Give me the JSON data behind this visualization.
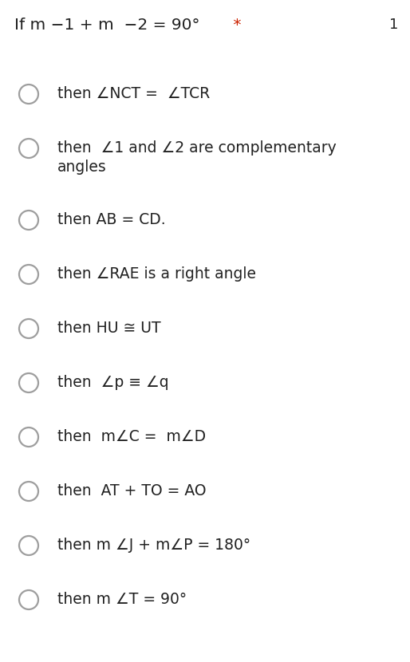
{
  "title_parts": [
    {
      "text": "If m ",
      "color": "#212121"
    },
    {
      "text": "∠1 + m  ∠2 = 90°",
      "color": "#212121"
    },
    {
      "text": " *",
      "color": "#cc2200"
    }
  ],
  "title_number": "1",
  "background_color": "#ffffff",
  "text_color": "#212121",
  "circle_color": "#9e9e9e",
  "options": [
    {
      "text": "then ∠NCT =  ∠TCR",
      "lines": 1
    },
    {
      "text": "then  ∠1 and ∠2 are complementary\nangles",
      "lines": 2
    },
    {
      "text": "then AB = CD.",
      "lines": 1
    },
    {
      "text": "then ∠RAE is a right angle",
      "lines": 1
    },
    {
      "text": "then HU ≅ UT",
      "lines": 1
    },
    {
      "text": "then  ∠p ≡ ∠q",
      "lines": 1
    },
    {
      "text": "then  m∠C =  m∠D",
      "lines": 1
    },
    {
      "text": "then  AT + TO = AO",
      "lines": 1
    },
    {
      "text": "then m ∠J + m∠P = 180°",
      "lines": 1
    },
    {
      "text": "then m ∠T = 90°",
      "lines": 1
    }
  ],
  "title_fontsize": 14.5,
  "option_fontsize": 13.5,
  "number_fontsize": 13,
  "fig_width": 5.14,
  "fig_height": 8.3,
  "dpi": 100
}
